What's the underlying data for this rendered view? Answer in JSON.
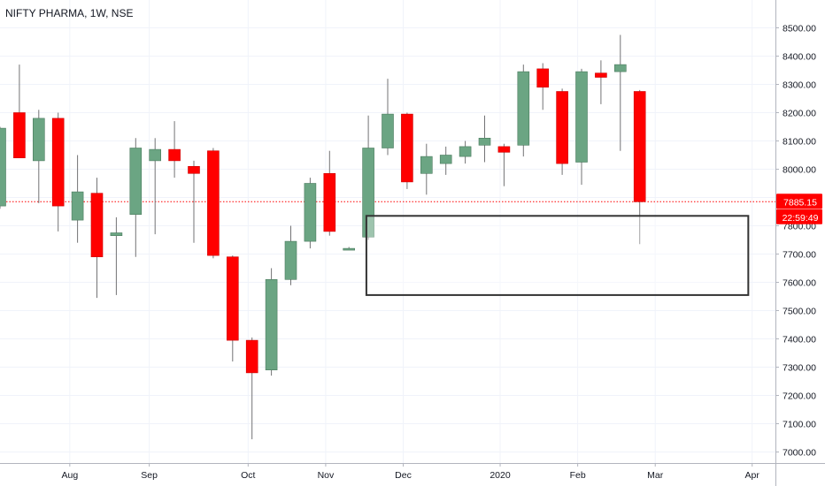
{
  "title": "NIFTY PHARMA, 1W, NSE",
  "chart_data": {
    "type": "candlestick",
    "ylim": [
      6970,
      8560
    ],
    "y_ticks": [
      7000,
      7100,
      7200,
      7300,
      7400,
      7500,
      7600,
      7700,
      7800,
      7900,
      8000,
      8100,
      8200,
      8300,
      8400,
      8500
    ],
    "y_tick_labels": [
      "7000.00",
      "7100.00",
      "7200.00",
      "7300.00",
      "7400.00",
      "7500.00",
      "7600.00",
      "7700.00",
      "7800.00",
      "7900.00",
      "8000.00",
      "8100.00",
      "8200.00",
      "8300.00",
      "8400.00",
      "8500.00"
    ],
    "x_ticks": [
      {
        "label": "Aug",
        "week": 3.6
      },
      {
        "label": "Sep",
        "week": 7.7
      },
      {
        "label": "Oct",
        "week": 12.8
      },
      {
        "label": "Nov",
        "week": 16.8
      },
      {
        "label": "Dec",
        "week": 20.8
      },
      {
        "label": "2020",
        "week": 25.8
      },
      {
        "label": "Feb",
        "week": 29.8
      },
      {
        "label": "Mar",
        "week": 33.8
      },
      {
        "label": "Apr",
        "week": 38.8
      }
    ],
    "candles": [
      {
        "o": 7870,
        "h": 8150,
        "l": 7860,
        "c": 8145
      },
      {
        "o": 8200,
        "h": 8370,
        "l": 8040,
        "c": 8040
      },
      {
        "o": 8030,
        "h": 8210,
        "l": 7880,
        "c": 8180
      },
      {
        "o": 8180,
        "h": 8200,
        "l": 7780,
        "c": 7870
      },
      {
        "o": 7820,
        "h": 8050,
        "l": 7740,
        "c": 7920
      },
      {
        "o": 7915,
        "h": 7970,
        "l": 7545,
        "c": 7690
      },
      {
        "o": 7765,
        "h": 7830,
        "l": 7555,
        "c": 7775
      },
      {
        "o": 7840,
        "h": 8110,
        "l": 7690,
        "c": 8075
      },
      {
        "o": 8030,
        "h": 8110,
        "l": 7770,
        "c": 8070
      },
      {
        "o": 8070,
        "h": 8170,
        "l": 7970,
        "c": 8030
      },
      {
        "o": 8010,
        "h": 8030,
        "l": 7740,
        "c": 7985
      },
      {
        "o": 8065,
        "h": 8075,
        "l": 7685,
        "c": 7695
      },
      {
        "o": 7690,
        "h": 7695,
        "l": 7320,
        "c": 7395
      },
      {
        "o": 7395,
        "h": 7405,
        "l": 7045,
        "c": 7280
      },
      {
        "o": 7290,
        "h": 7650,
        "l": 7270,
        "c": 7610
      },
      {
        "o": 7610,
        "h": 7800,
        "l": 7590,
        "c": 7745
      },
      {
        "o": 7745,
        "h": 7970,
        "l": 7720,
        "c": 7950
      },
      {
        "o": 7985,
        "h": 8065,
        "l": 7765,
        "c": 7780
      },
      {
        "o": 7720,
        "h": 7725,
        "l": 7715,
        "c": 7720
      },
      {
        "o": 7760,
        "h": 8190,
        "l": 7750,
        "c": 8075
      },
      {
        "o": 8075,
        "h": 8320,
        "l": 8050,
        "c": 8195
      },
      {
        "o": 8195,
        "h": 8200,
        "l": 7930,
        "c": 7955
      },
      {
        "o": 7985,
        "h": 8090,
        "l": 7910,
        "c": 8045
      },
      {
        "o": 8020,
        "h": 8080,
        "l": 7980,
        "c": 8050
      },
      {
        "o": 8045,
        "h": 8100,
        "l": 8020,
        "c": 8080
      },
      {
        "o": 8085,
        "h": 8190,
        "l": 8025,
        "c": 8110
      },
      {
        "o": 8080,
        "h": 8090,
        "l": 7940,
        "c": 8060
      },
      {
        "o": 8085,
        "h": 8370,
        "l": 8045,
        "c": 8345
      },
      {
        "o": 8355,
        "h": 8375,
        "l": 8210,
        "c": 8290
      },
      {
        "o": 8275,
        "h": 8285,
        "l": 7980,
        "c": 8020
      },
      {
        "o": 8025,
        "h": 8355,
        "l": 7945,
        "c": 8345
      },
      {
        "o": 8340,
        "h": 8385,
        "l": 8230,
        "c": 8325
      },
      {
        "o": 8345,
        "h": 8475,
        "l": 8065,
        "c": 8370
      },
      {
        "o": 8275,
        "h": 8280,
        "l": 7735,
        "c": 7885
      }
    ],
    "up_color": "#6ba583",
    "down_color": "#ff0000",
    "last_price": 7885.15,
    "last_price_label": "7885.15",
    "countdown_label": "22:59:49",
    "zone_box": {
      "x_from": 18.9,
      "x_to": 38.6,
      "y_high": 7835,
      "y_low": 7555
    },
    "highlight_candle_index": 19,
    "grid": true
  }
}
